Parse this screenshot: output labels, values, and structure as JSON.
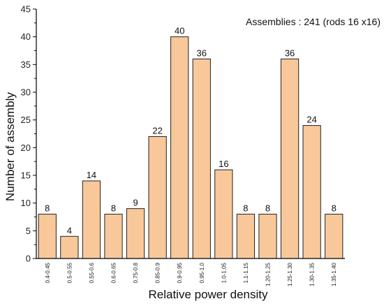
{
  "chart_data": {
    "type": "bar",
    "title": "",
    "annotation": "Assemblies : 241 (rods 16 x16)",
    "xlabel": "Relative power density",
    "ylabel": "Number of assembly",
    "ylim": [
      0,
      45
    ],
    "yticks": [
      0,
      5,
      10,
      15,
      20,
      25,
      30,
      35,
      40,
      45
    ],
    "grid": false,
    "categories": [
      "0.4-0.45",
      "0.5-0.55",
      "0.55-0.6",
      "0.6-0.65",
      "0.75-0.8",
      "0.85-0.9",
      "0.9-0.95",
      "0.95-1.0",
      "1.0-1.05",
      "1.1-1.15",
      "1.20-1.25",
      "1.25-1.30",
      "1.30-1.35",
      "1.35-1.40"
    ],
    "values": [
      8,
      4,
      14,
      8,
      9,
      22,
      40,
      36,
      16,
      8,
      8,
      36,
      24,
      8
    ],
    "colors": {
      "bar_fill": "#F8C89A",
      "bar_stroke": "#222222",
      "axis": "#000000"
    }
  }
}
